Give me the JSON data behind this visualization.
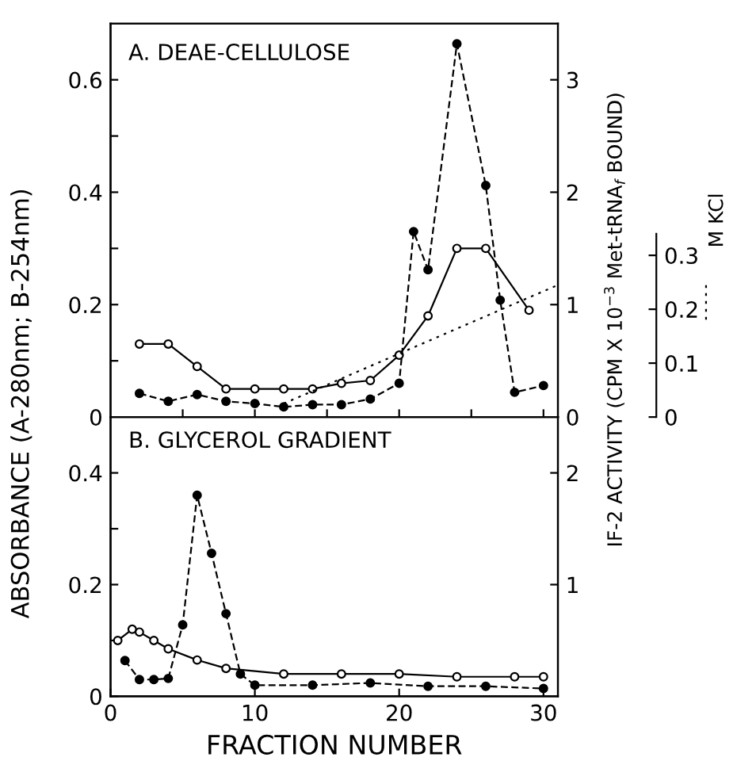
{
  "chart_data": [
    {
      "type": "line",
      "title": "A. DEAE-CELLULOSE",
      "ylabel": "ABSORBANCE (A-280nm; B-254nm)",
      "y2label": "IF-2 ACTIVITY (CPM X 10$^{−3}$ Met-tRNA$_{f}$ BOUND)",
      "y3label": "M KCl",
      "xlim": [
        0,
        31
      ],
      "xticks": [
        {
          "value": 5,
          "label": null
        },
        {
          "value": 10,
          "label": null
        },
        {
          "value": 15,
          "label": null
        },
        {
          "value": 20,
          "label": null
        },
        {
          "value": 25,
          "label": null
        },
        {
          "value": 30,
          "label": null
        }
      ],
      "ylim": [
        0,
        0.7
      ],
      "yticks": [
        0,
        {
          "value": 0.1,
          "label": null
        },
        0.2,
        {
          "value": 0.3,
          "label": null
        },
        0.4,
        {
          "value": 0.5,
          "label": null
        },
        0.6
      ],
      "y2lim": [
        0,
        3.5
      ],
      "y2ticks": [
        0,
        1,
        2,
        3
      ],
      "y3lim": [
        0,
        0.73
      ],
      "y3ticks": [
        0,
        0.1,
        0.2,
        0.3
      ],
      "tick_labels": "y",
      "marker": "circle",
      "grid": false,
      "legend": false,
      "series": [
        {
          "color": "#000000",
          "line_style": "solid",
          "x": [
            2,
            4,
            6,
            8,
            10,
            12,
            14,
            16,
            18,
            20,
            22,
            24,
            26,
            29
          ],
          "values": [
            0.13,
            0.13,
            0.09,
            0.05,
            0.05,
            0.05,
            0.05,
            0.06,
            0.065,
            0.11,
            0.18,
            0.3,
            0.3,
            0.19
          ]
        },
        {
          "color": "#000000",
          "line_style": "dashed",
          "axis": "y2",
          "x": [
            2,
            4,
            6,
            8,
            10,
            12,
            14,
            16,
            18,
            20,
            21,
            22,
            24,
            26,
            27,
            28,
            30
          ],
          "values": [
            0.21,
            0.14,
            0.2,
            0.14,
            0.12,
            0.09,
            0.11,
            0.11,
            0.16,
            0.3,
            1.65,
            1.31,
            3.32,
            2.06,
            1.04,
            0.22,
            0.28
          ]
        },
        {
          "color": "#000000",
          "marker": "none",
          "line_style": "dotted",
          "axis": "y3",
          "x": [
            12,
            31
          ],
          "values": [
            0.025,
            0.245
          ]
        }
      ]
    },
    {
      "type": "line",
      "title": "B. GLYCEROL GRADIENT",
      "xlabel": "FRACTION NUMBER",
      "xlim": [
        0,
        31
      ],
      "xticks": [
        0,
        10,
        20,
        30
      ],
      "ylim": [
        0,
        0.5
      ],
      "yticks": [
        0,
        {
          "value": 0.1,
          "label": null
        },
        0.2,
        {
          "value": 0.3,
          "label": null
        },
        0.4
      ],
      "y2lim": [
        0,
        2.5
      ],
      "y2ticks": [
        1,
        2
      ],
      "marker": "circle",
      "grid": false,
      "legend": false,
      "series": [
        {
          "color": "#000000",
          "line_style": "solid",
          "x": [
            0.5,
            1.5,
            2,
            3,
            4,
            6,
            8,
            12,
            16,
            20,
            24,
            28,
            30
          ],
          "values": [
            0.1,
            0.12,
            0.115,
            0.1,
            0.085,
            0.065,
            0.05,
            0.04,
            0.04,
            0.04,
            0.035,
            0.035,
            0.035
          ]
        },
        {
          "color": "#000000",
          "line_style": "dashed",
          "axis": "y2",
          "x": [
            1,
            2,
            3,
            4,
            5,
            6,
            7,
            8,
            9,
            10,
            14,
            18,
            22,
            26,
            30
          ],
          "values": [
            0.32,
            0.15,
            0.15,
            0.16,
            0.64,
            1.8,
            1.28,
            0.74,
            0.2,
            0.1,
            0.1,
            0.12,
            0.09,
            0.09,
            0.07
          ]
        }
      ]
    }
  ]
}
